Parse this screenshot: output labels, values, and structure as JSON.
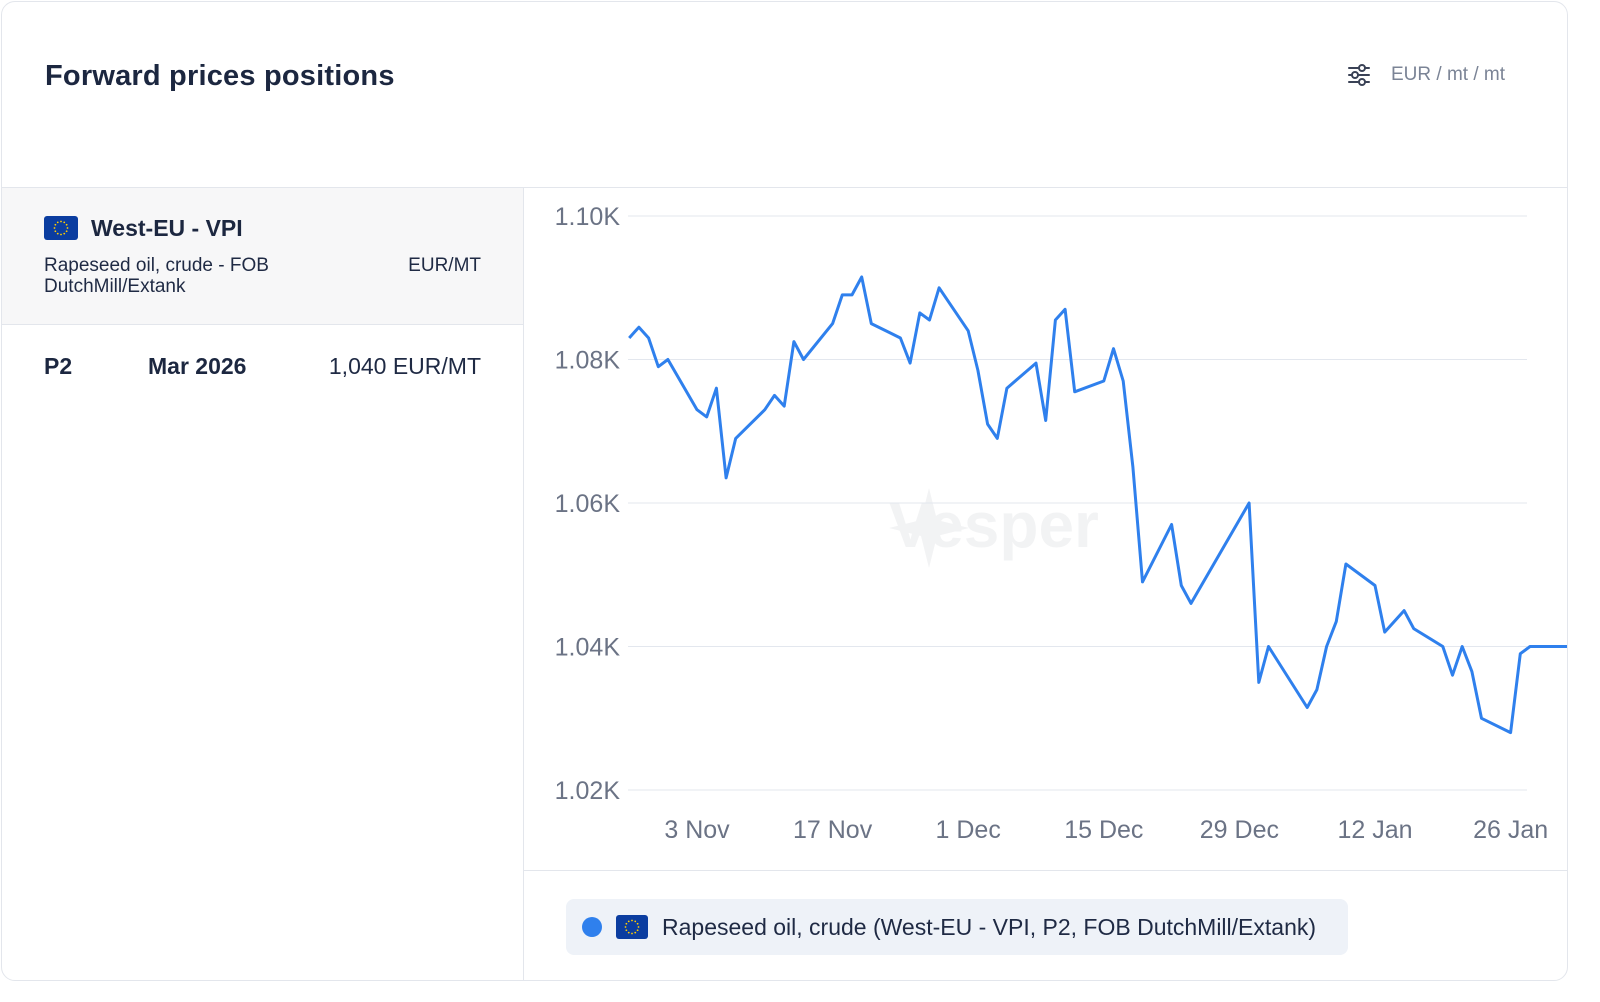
{
  "header": {
    "title": "Forward prices positions",
    "unit_selector": "EUR / mt / mt"
  },
  "market": {
    "name": "West-EU - VPI",
    "product": "Rapeseed oil, crude - FOB DutchMill/Extank",
    "unit": "EUR/MT",
    "flag_icon": "eu-flag-icon"
  },
  "position": {
    "period": "P2",
    "month": "Mar 2026",
    "price": "1,040 EUR/MT"
  },
  "colors": {
    "series": "#2f80ed",
    "flag_blue": "#0b3da0",
    "flag_stars": "#ffcc00",
    "grid": "#e3e7ee",
    "axis_text": "#6b7385"
  },
  "chart_data": {
    "type": "line",
    "y_ticks": [
      "1.02K",
      "1.04K",
      "1.06K",
      "1.08K",
      "1.10K"
    ],
    "ylim": [
      1020,
      1100
    ],
    "x_ticks": [
      "3 Nov",
      "17 Nov",
      "1 Dec",
      "15 Dec",
      "29 Dec",
      "12 Jan",
      "26 Jan"
    ],
    "grid": true,
    "legend_position": "bottom",
    "series": [
      {
        "name": "Rapeseed oil, crude (West-EU - VPI, P2, FOB DutchMill/Extank)",
        "points": [
          [
            "2025-10-27",
            1083.0
          ],
          [
            "2025-10-28",
            1084.5
          ],
          [
            "2025-10-29",
            1083.0
          ],
          [
            "2025-10-30",
            1079.0
          ],
          [
            "2025-10-31",
            1080.0
          ],
          [
            "2025-11-03",
            1073.0
          ],
          [
            "2025-11-04",
            1072.0
          ],
          [
            "2025-11-05",
            1076.0
          ],
          [
            "2025-11-06",
            1063.5
          ],
          [
            "2025-11-07",
            1069.0
          ],
          [
            "2025-11-10",
            1073.0
          ],
          [
            "2025-11-11",
            1075.0
          ],
          [
            "2025-11-12",
            1073.5
          ],
          [
            "2025-11-13",
            1082.5
          ],
          [
            "2025-11-14",
            1080.0
          ],
          [
            "2025-11-17",
            1085.0
          ],
          [
            "2025-11-18",
            1089.0
          ],
          [
            "2025-11-19",
            1089.0
          ],
          [
            "2025-11-20",
            1091.5
          ],
          [
            "2025-11-21",
            1085.0
          ],
          [
            "2025-11-24",
            1083.0
          ],
          [
            "2025-11-25",
            1079.5
          ],
          [
            "2025-11-26",
            1086.5
          ],
          [
            "2025-11-27",
            1085.5
          ],
          [
            "2025-11-28",
            1090.0
          ],
          [
            "2025-12-01",
            1084.0
          ],
          [
            "2025-12-02",
            1078.5
          ],
          [
            "2025-12-03",
            1071.0
          ],
          [
            "2025-12-04",
            1069.0
          ],
          [
            "2025-12-05",
            1076.0
          ],
          [
            "2025-12-08",
            1079.5
          ],
          [
            "2025-12-09",
            1071.5
          ],
          [
            "2025-12-10",
            1085.5
          ],
          [
            "2025-12-11",
            1087.0
          ],
          [
            "2025-12-12",
            1075.5
          ],
          [
            "2025-12-15",
            1077.0
          ],
          [
            "2025-12-16",
            1081.5
          ],
          [
            "2025-12-17",
            1077.0
          ],
          [
            "2025-12-18",
            1065.0
          ],
          [
            "2025-12-19",
            1049.0
          ],
          [
            "2025-12-22",
            1057.0
          ],
          [
            "2025-12-23",
            1048.5
          ],
          [
            "2025-12-24",
            1046.0
          ],
          [
            "2025-12-30",
            1060.0
          ],
          [
            "2025-12-31",
            1035.0
          ],
          [
            "2026-01-01",
            1040.0
          ],
          [
            "2026-01-05",
            1031.5
          ],
          [
            "2026-01-06",
            1034.0
          ],
          [
            "2026-01-07",
            1040.0
          ],
          [
            "2026-01-08",
            1043.5
          ],
          [
            "2026-01-09",
            1051.5
          ],
          [
            "2026-01-12",
            1048.5
          ],
          [
            "2026-01-13",
            1042.0
          ],
          [
            "2026-01-15",
            1045.0
          ],
          [
            "2026-01-16",
            1042.5
          ],
          [
            "2026-01-19",
            1040.0
          ],
          [
            "2026-01-20",
            1036.0
          ],
          [
            "2026-01-21",
            1040.0
          ],
          [
            "2026-01-22",
            1036.5
          ],
          [
            "2026-01-23",
            1030.0
          ],
          [
            "2026-01-26",
            1028.0
          ],
          [
            "2026-01-27",
            1039.0
          ],
          [
            "2026-01-28",
            1040.0
          ],
          [
            "2026-01-29",
            1040.0
          ],
          [
            "2026-02-01",
            1040.0
          ],
          [
            "2026-02-02",
            1040.0
          ]
        ]
      }
    ]
  },
  "legend": {
    "label": "Rapeseed oil, crude (West-EU - VPI, P2, FOB DutchMill/Extank)",
    "dot_color": "#2f80ed"
  },
  "watermark": {
    "text": "Vesper"
  }
}
